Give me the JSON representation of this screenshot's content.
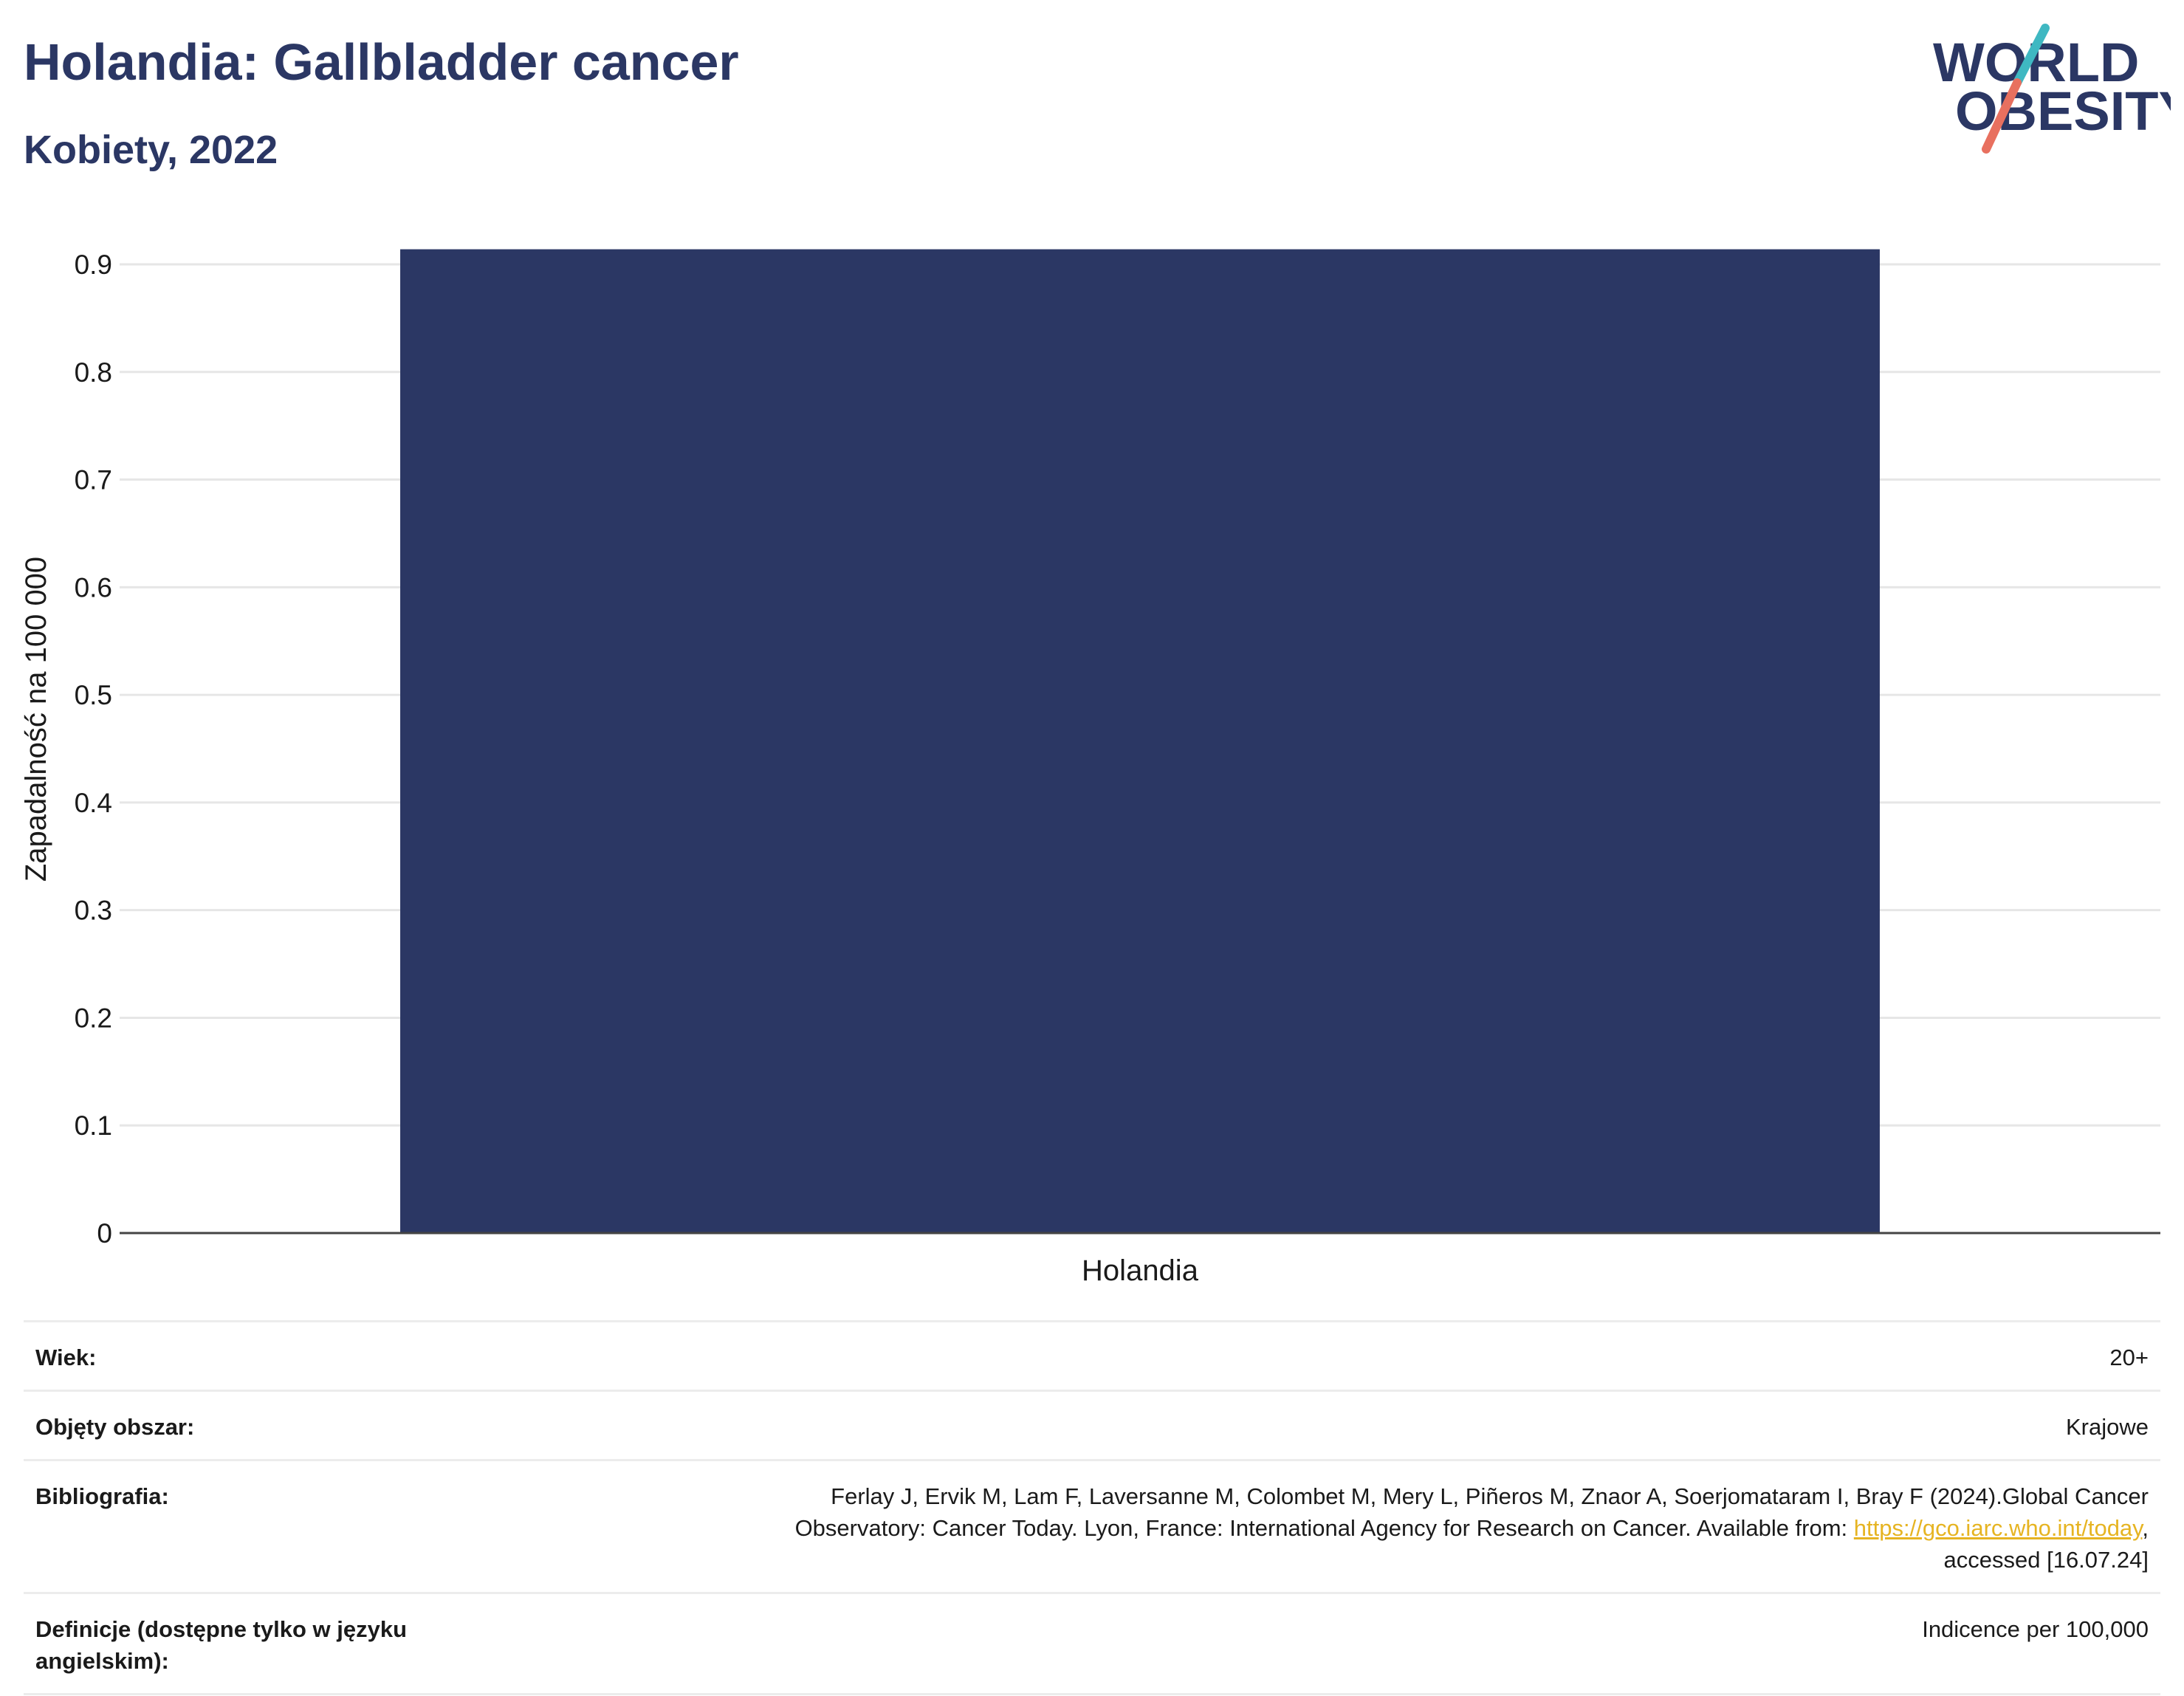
{
  "header": {
    "title": "Holandia: Gallbladder cancer",
    "subtitle": "Kobiety, 2022",
    "logo_line1": "WORLD",
    "logo_line2": "OBESITY"
  },
  "chart_data": {
    "type": "bar",
    "categories": [
      "Holandia"
    ],
    "values": [
      0.914
    ],
    "xlabel": "",
    "ylabel": "Zapadalność na 100 000",
    "ylim": [
      0,
      0.9
    ],
    "yticks": [
      "0",
      "0.1",
      "0.2",
      "0.3",
      "0.4",
      "0.5",
      "0.6",
      "0.7",
      "0.8",
      "0.9"
    ],
    "grid": true,
    "bar_color": "#2b3764"
  },
  "meta": {
    "age_label": "Wiek:",
    "age_value": "20+",
    "area_label": "Objęty obszar:",
    "area_value": "Krajowe",
    "bib_label": "Bibliografia:",
    "bib_line1": "Ferlay J, Ervik M, Lam F, Laversanne M, Colombet M, Mery L, Piñeros M, Znaor A, Soerjomataram I, Bray F (2024).Global Cancer",
    "bib_line2_pre": "Observatory: Cancer Today. Lyon, France: International Agency for Research on Cancer. Available from: ",
    "bib_link": "https://gco.iarc.who.int/today",
    "bib_line2_post": ",",
    "bib_line3": "accessed [16.07.24]",
    "def_label": "Definicje (dostępne tylko w języku angielskim):",
    "def_value": "Indicence per 100,000"
  },
  "colors": {
    "brand_navy": "#2b3764",
    "logo_teal": "#3fb8c2",
    "logo_coral": "#e8705f",
    "link": "#e6b422"
  }
}
